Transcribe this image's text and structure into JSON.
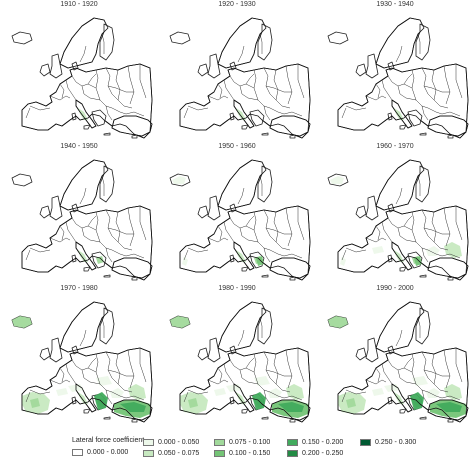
{
  "panels": [
    {
      "period": "1910 - 1920",
      "level": 1
    },
    {
      "period": "1920 - 1930",
      "level": 1
    },
    {
      "period": "1930 - 1940",
      "level": 1
    },
    {
      "period": "1940 - 1950",
      "level": 2
    },
    {
      "period": "1950 - 1960",
      "level": 3
    },
    {
      "period": "1960 - 1970",
      "level": 4
    },
    {
      "period": "1970 - 1980",
      "level": 6
    },
    {
      "period": "1980 - 1990",
      "level": 6
    },
    {
      "period": "1990 - 2000",
      "level": 6
    }
  ],
  "legend": {
    "title": "Lateral force coefficient",
    "classes": [
      {
        "label": "0.000 - 0.000",
        "color": "#ffffff"
      },
      {
        "label": "0.000 - 0.050",
        "color": "#edf8ea"
      },
      {
        "label": "0.050 - 0.075",
        "color": "#c7e9c0"
      },
      {
        "label": "0.075 - 0.100",
        "color": "#a1d99b"
      },
      {
        "label": "0.100 - 0.150",
        "color": "#74c476"
      },
      {
        "label": "0.150 - 0.200",
        "color": "#41ab5d"
      },
      {
        "label": "0.200 - 0.250",
        "color": "#238b45"
      },
      {
        "label": "0.250 - 0.300",
        "color": "#005a32"
      }
    ]
  }
}
